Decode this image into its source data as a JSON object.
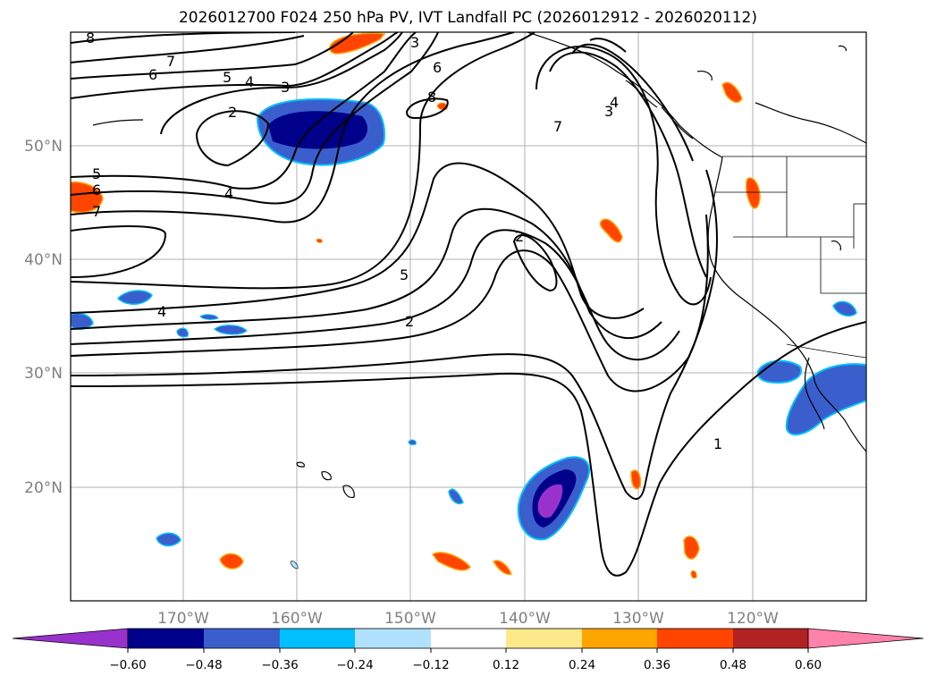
{
  "title": "2026012700 F024 250 hPa PV, IVT Landfall PC (2026012912 - 2026020112)",
  "map": {
    "lon_ticks": [
      "170°W",
      "160°W",
      "150°W",
      "140°W",
      "130°W",
      "120°W"
    ],
    "lat_ticks": [
      "50°N",
      "40°N",
      "30°N",
      "20°N"
    ],
    "gridlines": true
  },
  "contour_labels": [
    "8",
    "7",
    "6",
    "5",
    "4",
    "3",
    "2",
    "4",
    "5",
    "6",
    "7",
    "4",
    "5",
    "2",
    "2",
    "3",
    "6",
    "8",
    "7",
    "3",
    "4",
    "1"
  ],
  "colorbar": {
    "extend": "both",
    "colors": [
      "#9932cc",
      "#00008b",
      "#3a5fcd",
      "#00bfff",
      "#b0e2ff",
      "#ffffff",
      "#fee98a",
      "#ffa500",
      "#ff4500",
      "#b22222",
      "#ff82ab"
    ],
    "tick_labels": [
      "−0.60",
      "−0.48",
      "−0.36",
      "−0.24",
      "−0.12",
      "0.12",
      "0.24",
      "0.36",
      "0.48",
      "0.60"
    ]
  },
  "colors": {
    "negative_shading": [
      "#9932cc",
      "#00008b",
      "#3a5fcd",
      "#00bfff"
    ],
    "positive_shading": [
      "#ffa500",
      "#ff4500"
    ]
  }
}
